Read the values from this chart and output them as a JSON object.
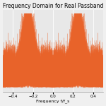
{
  "title": "Frequency Domain for Real Passband",
  "xlabel": "Frequency f/f_s",
  "xlim": [
    -0.5,
    0.5
  ],
  "line_color": "#E8632A",
  "line_alpha": 0.5,
  "line_width": 0.3,
  "fc": 0.25,
  "num_symbols": 500,
  "samples_per_symbol": 8,
  "noise_std": 1.0,
  "seed": 42,
  "num_segments": 40,
  "figsize": [
    1.5,
    1.5
  ],
  "dpi": 100,
  "title_fontsize": 5.5,
  "label_fontsize": 4.5,
  "tick_fontsize": 4,
  "xticks": [
    -0.4,
    -0.2,
    0.0,
    0.2,
    0.4
  ],
  "bg_color": "#E8E8E8",
  "grid_color": "#FFFFFF"
}
